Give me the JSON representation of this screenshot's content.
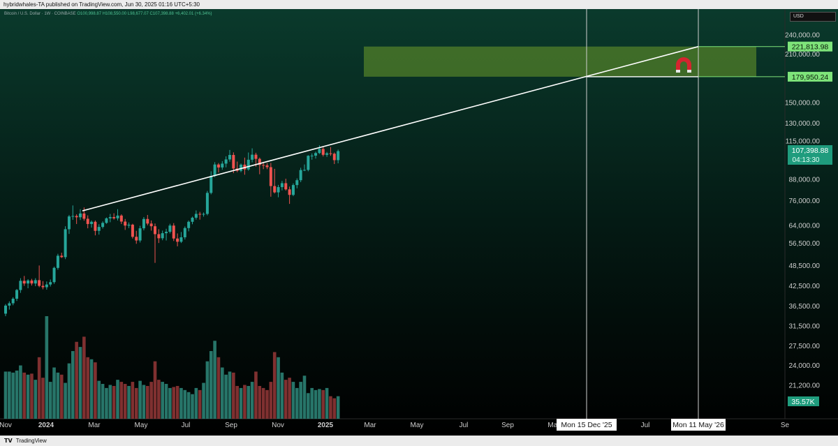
{
  "header": {
    "publish_line": "hybridwhales-TA published on TradingView.com, Jun 30, 2025 01:16 UTC+5:30"
  },
  "footer": {
    "logo_text": "𝗧𝗩",
    "brand": "TradingView"
  },
  "legend": {
    "symbol": "Bitcoin / U.S. Dollar · 1W · COINBASE",
    "ohlc": "O100,998.87  H108,550.00  L98,677.07  C107,398.88  +6,402.01 (+6.34%)"
  },
  "currency_label": "USD",
  "chart_data": {
    "type": "candlestick",
    "title": "Bitcoin / U.S. Dollar · 1W · COINBASE",
    "y_scale": "log",
    "y_ticks": [
      "240,000.00",
      "210,000.00",
      "150,000.00",
      "130,000.00",
      "115,000.00",
      "88,000.00",
      "76,000.00",
      "64,000.00",
      "56,500.00",
      "48,500.00",
      "42,500.00",
      "36,500.00",
      "31,500.00",
      "27,500.00",
      "24,000.00",
      "21,200.00"
    ],
    "x_ticks": [
      "Nov",
      "2024",
      "Mar",
      "May",
      "Jul",
      "Sep",
      "Nov",
      "2025",
      "Mar",
      "May",
      "Jul",
      "Sep",
      "Mar",
      "Jul",
      "Se"
    ],
    "price_labels": {
      "upper_target": "221,813.98",
      "lower_target": "179,950.24",
      "last_price": "107,398.88",
      "countdown": "04:13:30",
      "volume": "35.57K"
    },
    "date_labels": [
      "Mon 15 Dec '25",
      "Mon 11 May '26"
    ],
    "target_zone": {
      "upper": 221813.98,
      "lower": 179950.24,
      "color": "#6b9a2a"
    },
    "trendline": {
      "from": [
        "2024-03-04",
        71000
      ],
      "to": [
        "2026-05-11",
        221813.98
      ]
    },
    "annotation_icon": "magnet-icon",
    "colors": {
      "up": "#26a69a",
      "down": "#ef5350",
      "line": "#ffffff",
      "zone": "#6b9a2a",
      "label_green": "#7ee47a",
      "last_price_bg": "#1f9c7d"
    },
    "candles": [
      {
        "o": 34800,
        "h": 37200,
        "l": 34200,
        "c": 36800
      },
      {
        "o": 36800,
        "h": 37900,
        "l": 35800,
        "c": 37400
      },
      {
        "o": 37400,
        "h": 39000,
        "l": 36900,
        "c": 38600
      },
      {
        "o": 38600,
        "h": 41300,
        "l": 38000,
        "c": 41000
      },
      {
        "o": 41000,
        "h": 44500,
        "l": 40200,
        "c": 43700
      },
      {
        "o": 43700,
        "h": 45200,
        "l": 42200,
        "c": 42900
      },
      {
        "o": 42900,
        "h": 44200,
        "l": 41500,
        "c": 43800
      },
      {
        "o": 43800,
        "h": 44300,
        "l": 42300,
        "c": 42900
      },
      {
        "o": 42900,
        "h": 44500,
        "l": 42100,
        "c": 43900
      },
      {
        "o": 43900,
        "h": 48600,
        "l": 41800,
        "c": 42200
      },
      {
        "o": 42200,
        "h": 43600,
        "l": 41200,
        "c": 41800
      },
      {
        "o": 41800,
        "h": 43500,
        "l": 41100,
        "c": 42600
      },
      {
        "o": 42600,
        "h": 44100,
        "l": 42000,
        "c": 43300
      },
      {
        "o": 43300,
        "h": 48200,
        "l": 42800,
        "c": 47800
      },
      {
        "o": 47800,
        "h": 52700,
        "l": 47200,
        "c": 52000
      },
      {
        "o": 52000,
        "h": 53100,
        "l": 51200,
        "c": 51500
      },
      {
        "o": 51500,
        "h": 63800,
        "l": 50800,
        "c": 62500
      },
      {
        "o": 62500,
        "h": 69000,
        "l": 60500,
        "c": 68300
      },
      {
        "o": 68300,
        "h": 73700,
        "l": 66700,
        "c": 68500
      },
      {
        "o": 68500,
        "h": 69300,
        "l": 64800,
        "c": 67900
      },
      {
        "o": 67900,
        "h": 71800,
        "l": 66600,
        "c": 69700
      },
      {
        "o": 69700,
        "h": 72700,
        "l": 66300,
        "c": 67200
      },
      {
        "o": 67200,
        "h": 68800,
        "l": 62900,
        "c": 64800
      },
      {
        "o": 64800,
        "h": 66400,
        "l": 63200,
        "c": 65800
      },
      {
        "o": 65800,
        "h": 66400,
        "l": 59900,
        "c": 61800
      },
      {
        "o": 61800,
        "h": 64700,
        "l": 60200,
        "c": 63500
      },
      {
        "o": 63500,
        "h": 66000,
        "l": 62800,
        "c": 65300
      },
      {
        "o": 65300,
        "h": 67800,
        "l": 64900,
        "c": 67400
      },
      {
        "o": 67400,
        "h": 69500,
        "l": 65600,
        "c": 68000
      },
      {
        "o": 68000,
        "h": 69800,
        "l": 66800,
        "c": 67400
      },
      {
        "o": 67400,
        "h": 71800,
        "l": 66400,
        "c": 68700
      },
      {
        "o": 68700,
        "h": 69300,
        "l": 64800,
        "c": 65900
      },
      {
        "o": 65900,
        "h": 67100,
        "l": 62200,
        "c": 64100
      },
      {
        "o": 64100,
        "h": 65500,
        "l": 63000,
        "c": 64500
      },
      {
        "o": 64500,
        "h": 64900,
        "l": 58600,
        "c": 59300
      },
      {
        "o": 59300,
        "h": 61800,
        "l": 56500,
        "c": 57800
      },
      {
        "o": 57800,
        "h": 64000,
        "l": 57000,
        "c": 62900
      },
      {
        "o": 62900,
        "h": 68000,
        "l": 62000,
        "c": 67100
      },
      {
        "o": 67100,
        "h": 69000,
        "l": 64200,
        "c": 65000
      },
      {
        "o": 65000,
        "h": 66400,
        "l": 61900,
        "c": 63800
      },
      {
        "o": 63800,
        "h": 65000,
        "l": 49500,
        "c": 60400
      },
      {
        "o": 60400,
        "h": 62500,
        "l": 56800,
        "c": 58700
      },
      {
        "o": 58700,
        "h": 61900,
        "l": 57900,
        "c": 60800
      },
      {
        "o": 60800,
        "h": 62700,
        "l": 57800,
        "c": 61400
      },
      {
        "o": 61400,
        "h": 64900,
        "l": 60700,
        "c": 64100
      },
      {
        "o": 64100,
        "h": 65200,
        "l": 57600,
        "c": 58600
      },
      {
        "o": 58600,
        "h": 60700,
        "l": 55500,
        "c": 57300
      },
      {
        "o": 57300,
        "h": 61300,
        "l": 56800,
        "c": 59100
      },
      {
        "o": 59100,
        "h": 63700,
        "l": 58200,
        "c": 63000
      },
      {
        "o": 63000,
        "h": 66400,
        "l": 61600,
        "c": 65800
      },
      {
        "o": 65800,
        "h": 68200,
        "l": 64700,
        "c": 67700
      },
      {
        "o": 67700,
        "h": 71200,
        "l": 66800,
        "c": 69500
      },
      {
        "o": 69500,
        "h": 70500,
        "l": 66800,
        "c": 69300
      },
      {
        "o": 69300,
        "h": 70200,
        "l": 68200,
        "c": 69500
      },
      {
        "o": 69500,
        "h": 81500,
        "l": 68800,
        "c": 80400
      },
      {
        "o": 80400,
        "h": 93400,
        "l": 79600,
        "c": 90400
      },
      {
        "o": 90400,
        "h": 99500,
        "l": 89700,
        "c": 97900
      },
      {
        "o": 97900,
        "h": 98900,
        "l": 92600,
        "c": 95900
      },
      {
        "o": 95900,
        "h": 100200,
        "l": 94400,
        "c": 98500
      },
      {
        "o": 98500,
        "h": 103600,
        "l": 96000,
        "c": 101400
      },
      {
        "o": 101400,
        "h": 108300,
        "l": 99800,
        "c": 104600
      },
      {
        "o": 104600,
        "h": 106500,
        "l": 92200,
        "c": 95200
      },
      {
        "o": 95200,
        "h": 99900,
        "l": 92800,
        "c": 93700
      },
      {
        "o": 93700,
        "h": 98600,
        "l": 92800,
        "c": 97800
      },
      {
        "o": 97800,
        "h": 102700,
        "l": 91200,
        "c": 94600
      },
      {
        "o": 94600,
        "h": 106400,
        "l": 93800,
        "c": 101200
      },
      {
        "o": 101200,
        "h": 109500,
        "l": 99400,
        "c": 104800
      },
      {
        "o": 104800,
        "h": 106200,
        "l": 96400,
        "c": 101800
      },
      {
        "o": 101800,
        "h": 102700,
        "l": 91500,
        "c": 97600
      },
      {
        "o": 97600,
        "h": 99800,
        "l": 94800,
        "c": 97300
      },
      {
        "o": 97300,
        "h": 98800,
        "l": 94800,
        "c": 96100
      },
      {
        "o": 96100,
        "h": 99000,
        "l": 78300,
        "c": 84300
      },
      {
        "o": 84300,
        "h": 95000,
        "l": 80100,
        "c": 80700
      },
      {
        "o": 80700,
        "h": 85000,
        "l": 78000,
        "c": 83700
      },
      {
        "o": 83700,
        "h": 87400,
        "l": 81800,
        "c": 86000
      },
      {
        "o": 86000,
        "h": 88700,
        "l": 81700,
        "c": 82400
      },
      {
        "o": 82400,
        "h": 84000,
        "l": 74500,
        "c": 79300
      },
      {
        "o": 79300,
        "h": 85900,
        "l": 78600,
        "c": 84900
      },
      {
        "o": 84900,
        "h": 88900,
        "l": 83000,
        "c": 87800
      },
      {
        "o": 87800,
        "h": 95700,
        "l": 86600,
        "c": 94200
      },
      {
        "o": 94200,
        "h": 97900,
        "l": 93500,
        "c": 94300
      },
      {
        "o": 94300,
        "h": 104400,
        "l": 93400,
        "c": 104000
      },
      {
        "o": 104000,
        "h": 105700,
        "l": 101200,
        "c": 104100
      },
      {
        "o": 104100,
        "h": 107000,
        "l": 102000,
        "c": 106000
      },
      {
        "o": 106000,
        "h": 111900,
        "l": 105300,
        "c": 109100
      },
      {
        "o": 109100,
        "h": 110500,
        "l": 103500,
        "c": 104700
      },
      {
        "o": 104700,
        "h": 106800,
        "l": 103200,
        "c": 105800
      },
      {
        "o": 105800,
        "h": 110500,
        "l": 104000,
        "c": 105500
      },
      {
        "o": 105500,
        "h": 106400,
        "l": 98200,
        "c": 100900
      },
      {
        "o": 100900,
        "h": 108550,
        "l": 98700,
        "c": 107400
      }
    ],
    "volume_levels": [
      0.46,
      0.46,
      0.45,
      0.47,
      0.52,
      0.45,
      0.43,
      0.44,
      0.38,
      0.6,
      0.4,
      1.0,
      0.36,
      0.5,
      0.45,
      0.43,
      0.35,
      0.54,
      0.66,
      0.75,
      0.7,
      0.8,
      0.6,
      0.58,
      0.55,
      0.37,
      0.34,
      0.3,
      0.33,
      0.32,
      0.38,
      0.36,
      0.34,
      0.32,
      0.36,
      0.3,
      0.37,
      0.33,
      0.32,
      0.36,
      0.56,
      0.38,
      0.36,
      0.34,
      0.3,
      0.31,
      0.32,
      0.3,
      0.28,
      0.26,
      0.24,
      0.3,
      0.28,
      0.35,
      0.56,
      0.66,
      0.76,
      0.6,
      0.5,
      0.43,
      0.46,
      0.45,
      0.32,
      0.3,
      0.33,
      0.32,
      0.36,
      0.46,
      0.32,
      0.3,
      0.28,
      0.36,
      0.65,
      0.6,
      0.45,
      0.38,
      0.4,
      0.36,
      0.3,
      0.36,
      0.42,
      0.25,
      0.3,
      0.28,
      0.29,
      0.28,
      0.3,
      0.22,
      0.2,
      0.22
    ]
  }
}
